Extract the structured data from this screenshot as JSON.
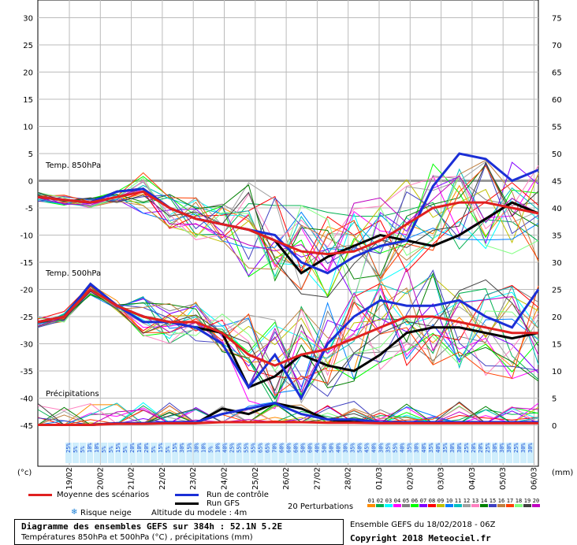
{
  "chart_data": {
    "type": "line",
    "left_axis": {
      "label": "(°c)",
      "ticks": [
        30,
        25,
        20,
        15,
        10,
        5,
        0,
        -5,
        -10,
        -15,
        -20,
        -25,
        -30,
        -35,
        -40,
        -45
      ],
      "range": [
        -45,
        30
      ]
    },
    "right_axis": {
      "label": "(mm)",
      "ticks": [
        75,
        70,
        65,
        60,
        55,
        50,
        45,
        40,
        35,
        30,
        25,
        20,
        15,
        10,
        5,
        0
      ]
    },
    "dates": [
      "19/02",
      "20/02",
      "21/02",
      "22/02",
      "23/02",
      "24/02",
      "25/02",
      "26/02",
      "27/02",
      "28/02",
      "01/03",
      "02/03",
      "03/03",
      "04/03",
      "05/03",
      "06/03"
    ],
    "section_labels": {
      "t850": "Temp. 850hPa",
      "t500": "Temp. 500hPa",
      "precip": "Précipitations"
    },
    "snow_risk_percent": [
      "25%",
      "5%",
      "5%",
      "10%",
      "10%",
      "5%",
      "5%",
      "15%",
      "5%",
      "20%",
      "10%",
      "20%",
      "5%",
      "15%",
      "5%",
      "15%",
      "30%",
      "15%",
      "30%",
      "10%",
      "5%",
      "10%",
      "40%",
      "25%",
      "55%",
      "55%",
      "55%",
      "65%",
      "65%",
      "70%",
      "60%",
      "60%",
      "60%",
      "50%",
      "60%",
      "40%",
      "50%",
      "50%",
      "40%",
      "30%",
      "35%",
      "50%",
      "45%",
      "40%",
      "30%",
      "35%",
      "55%",
      "40%",
      "35%",
      "30%",
      "40%",
      "35%",
      "40%",
      "35%",
      "30%",
      "30%",
      "25%",
      "20%",
      "20%",
      "25%",
      "30%",
      "30%",
      "30%",
      "25%",
      "30%",
      "30%"
    ],
    "series": [
      {
        "name": "Moyenne des scénarios",
        "color": "#e02020",
        "t850": [
          -3,
          -3.5,
          -4,
          -3,
          -2,
          -5,
          -7,
          -8,
          -9,
          -11,
          -13,
          -13.5,
          -13,
          -11,
          -8,
          -5,
          -4,
          -4,
          -5,
          -6
        ],
        "t500": [
          -26,
          -25,
          -20,
          -23,
          -25,
          -26,
          -26,
          -28,
          -32,
          -34,
          -32,
          -31,
          -29,
          -27,
          -25,
          -25,
          -26,
          -27,
          -28,
          -28
        ],
        "precip": [
          0,
          0,
          0,
          0.2,
          0.2,
          0.3,
          0.3,
          0.5,
          0.5,
          0.5,
          0.5,
          0.4,
          0.4,
          0.3,
          0.3,
          0.3,
          0.3,
          0.3,
          0.3,
          0.3
        ]
      },
      {
        "name": "Run de contrôle",
        "color": "#1b2fd6",
        "t850": [
          -3,
          -3.5,
          -4,
          -2,
          -1.5,
          -5,
          -7,
          -8,
          -9,
          -10,
          -15,
          -17,
          -14,
          -12,
          -11,
          -1,
          5,
          4,
          0,
          2
        ],
        "t500": [
          -26,
          -25,
          -19,
          -23,
          -26,
          -26,
          -27,
          -30,
          -38,
          -32,
          -40,
          -30,
          -25,
          -22,
          -23,
          -23,
          -22,
          -25,
          -27,
          -20
        ],
        "precip": [
          0,
          0,
          0,
          0.3,
          0.3,
          0.5,
          0.5,
          2,
          3,
          4,
          2,
          1,
          1,
          0.5,
          0.5,
          0.5,
          0.5,
          0.5,
          0.5,
          0.5
        ]
      },
      {
        "name": "Run GFS",
        "color": "#000000",
        "t850": [
          -3,
          -3.5,
          -4,
          -2,
          -1.5,
          -5,
          -7,
          -8,
          -9,
          -11,
          -17,
          -14,
          -12,
          -10,
          -11,
          -12,
          -10,
          -7,
          -4,
          -6
        ],
        "t500": [
          -26,
          -25,
          -19,
          -23,
          -25,
          -26,
          -27,
          -28,
          -38,
          -36,
          -32,
          -34,
          -35,
          -32,
          -28,
          -27,
          -27,
          -28,
          -29,
          -28
        ],
        "precip": [
          0,
          0,
          0,
          0.3,
          0.3,
          0.3,
          0.3,
          3,
          2,
          4,
          3,
          1,
          0.5,
          0.5,
          0.5,
          0.5,
          0.5,
          0.5,
          0.5,
          0.5
        ]
      }
    ],
    "perturbations": {
      "label": "20 Perturbations",
      "ids": [
        "01",
        "02",
        "03",
        "04",
        "05",
        "06",
        "07",
        "08",
        "09",
        "10",
        "11",
        "12",
        "13",
        "14",
        "15",
        "16",
        "17",
        "18",
        "19",
        "20"
      ],
      "colors": [
        "#ff8c00",
        "#00b050",
        "#00ffff",
        "#ff00ff",
        "#808080",
        "#00ff00",
        "#8000ff",
        "#ff0000",
        "#c0c000",
        "#0080ff",
        "#00c0c0",
        "#a0a0a0",
        "#ff80c0",
        "#008000",
        "#4040c0",
        "#c08040",
        "#ff4000",
        "#80ff80",
        "#404040",
        "#c000c0"
      ]
    }
  },
  "legend": {
    "mean": "Moyenne des scénarios",
    "control": "Run de contrôle",
    "gfs": "Run GFS",
    "perturbations": "20 Perturbations",
    "snow": "Risque neige",
    "altitude": "Altitude du modele : 4m"
  },
  "footer": {
    "title": "Diagramme des ensembles GEFS sur 384h : 52.1N 5.2E",
    "subtitle": "Températures 850hPa et 500hPa (°C) , précipitations (mm)",
    "run_info": "Ensemble GEFS du 18/02/2018 - 06Z",
    "copyright": "Copyright 2018 Meteociel.fr"
  },
  "colors": {
    "mean": "#e02020",
    "control": "#1b2fd6",
    "gfs": "#000000",
    "snow": "#9fd7f5"
  }
}
